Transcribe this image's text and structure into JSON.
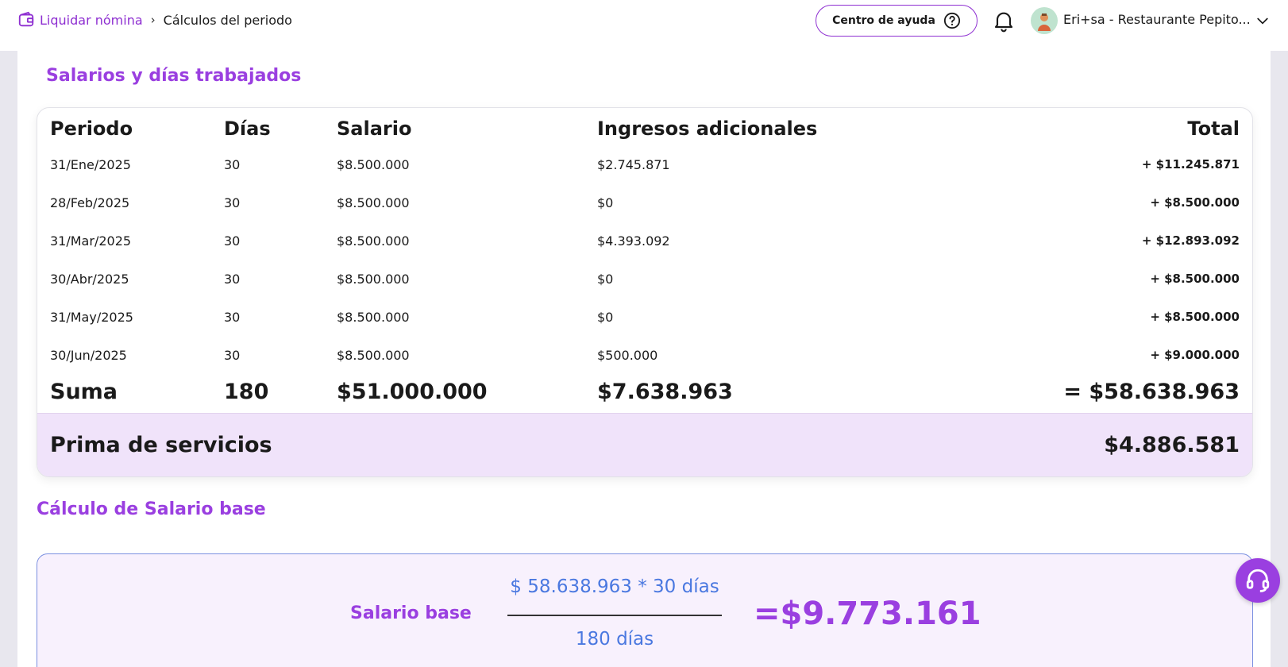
{
  "breadcrumb": {
    "root_label": "Liquidar nómina",
    "current_label": "Cálculos del periodo"
  },
  "header": {
    "help_label": "Centro de ayuda",
    "account_name": "Eri+sa - Restaurante Pepito..."
  },
  "salaries_section": {
    "title": "Salarios y días trabajados",
    "columns": {
      "period": "Periodo",
      "days": "Días",
      "salary": "Salario",
      "extra": "Ingresos adicionales",
      "total": "Total"
    },
    "rows": [
      {
        "period": "31/Ene/2025",
        "days": "30",
        "salary": "$8.500.000",
        "extra": "$2.745.871",
        "total": "+ $11.245.871"
      },
      {
        "period": "28/Feb/2025",
        "days": "30",
        "salary": "$8.500.000",
        "extra": "$0",
        "total": "+ $8.500.000"
      },
      {
        "period": "31/Mar/2025",
        "days": "30",
        "salary": "$8.500.000",
        "extra": "$4.393.092",
        "total": "+ $12.893.092"
      },
      {
        "period": "30/Abr/2025",
        "days": "30",
        "salary": "$8.500.000",
        "extra": "$0",
        "total": "+ $8.500.000"
      },
      {
        "period": "31/May/2025",
        "days": "30",
        "salary": "$8.500.000",
        "extra": "$0",
        "total": "+ $8.500.000"
      },
      {
        "period": "30/Jun/2025",
        "days": "30",
        "salary": "$8.500.000",
        "extra": "$500.000",
        "total": "+ $9.000.000"
      }
    ],
    "sum": {
      "label": "Suma",
      "days": "180",
      "salary": "$51.000.000",
      "extra": "$7.638.963",
      "total": "= $58.638.963"
    },
    "prima": {
      "label": "Prima de servicios",
      "value": "$4.886.581"
    }
  },
  "base_section": {
    "title": "Cálculo de Salario base",
    "label": "Salario base",
    "numerator": "$ 58.638.963 * 30 días",
    "denominator": "180 días",
    "result": "=$9.773.161"
  },
  "colors": {
    "accent": "#9a3fe0",
    "formula_blue": "#4a78e0",
    "prima_bg": "#f0e3fa"
  },
  "icons": {
    "breadcrumb": "wallet-icon",
    "help": "question-circle-icon",
    "notifications": "bell-icon",
    "menu": "chevron-down-icon",
    "support": "headset-icon"
  }
}
